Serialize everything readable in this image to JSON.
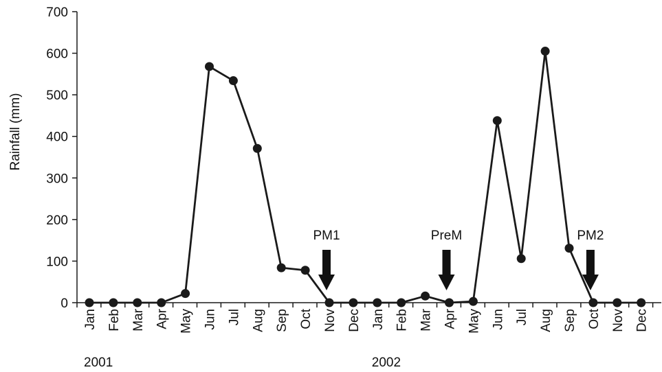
{
  "chart_data": {
    "type": "line",
    "title": "",
    "xlabel": "",
    "ylabel": "Rainfall (mm)",
    "ylim": [
      0,
      700
    ],
    "yticks": [
      0,
      100,
      200,
      300,
      400,
      500,
      600,
      700
    ],
    "categories": [
      "Jan",
      "Feb",
      "Mar",
      "Apr",
      "May",
      "Jun",
      "Jul",
      "Aug",
      "Sep",
      "Oct",
      "Nov",
      "Dec",
      "Jan",
      "Feb",
      "Mar",
      "Apr",
      "May",
      "Jun",
      "Jul",
      "Aug",
      "Sep",
      "Oct",
      "Nov",
      "Dec"
    ],
    "year_labels": [
      {
        "text": "2001",
        "month_index": 0
      },
      {
        "text": "2002",
        "month_index": 12
      }
    ],
    "series": [
      {
        "values": [
          0,
          0,
          0,
          0,
          22,
          568,
          534,
          371,
          84,
          78,
          0,
          0,
          0,
          0,
          16,
          0,
          3,
          438,
          106,
          605,
          131,
          0,
          0,
          0
        ]
      }
    ],
    "annotations": [
      {
        "text": "PM1",
        "month_index": 10
      },
      {
        "text": "PreM",
        "month_index": 15
      },
      {
        "text": "PM2",
        "month_index": 21
      }
    ],
    "grid": false,
    "legend": "none",
    "colors": {
      "line": "#1a1a1a",
      "marker": "#1a1a1a",
      "axis": "#1a1a1a",
      "arrow": "#111111"
    }
  }
}
